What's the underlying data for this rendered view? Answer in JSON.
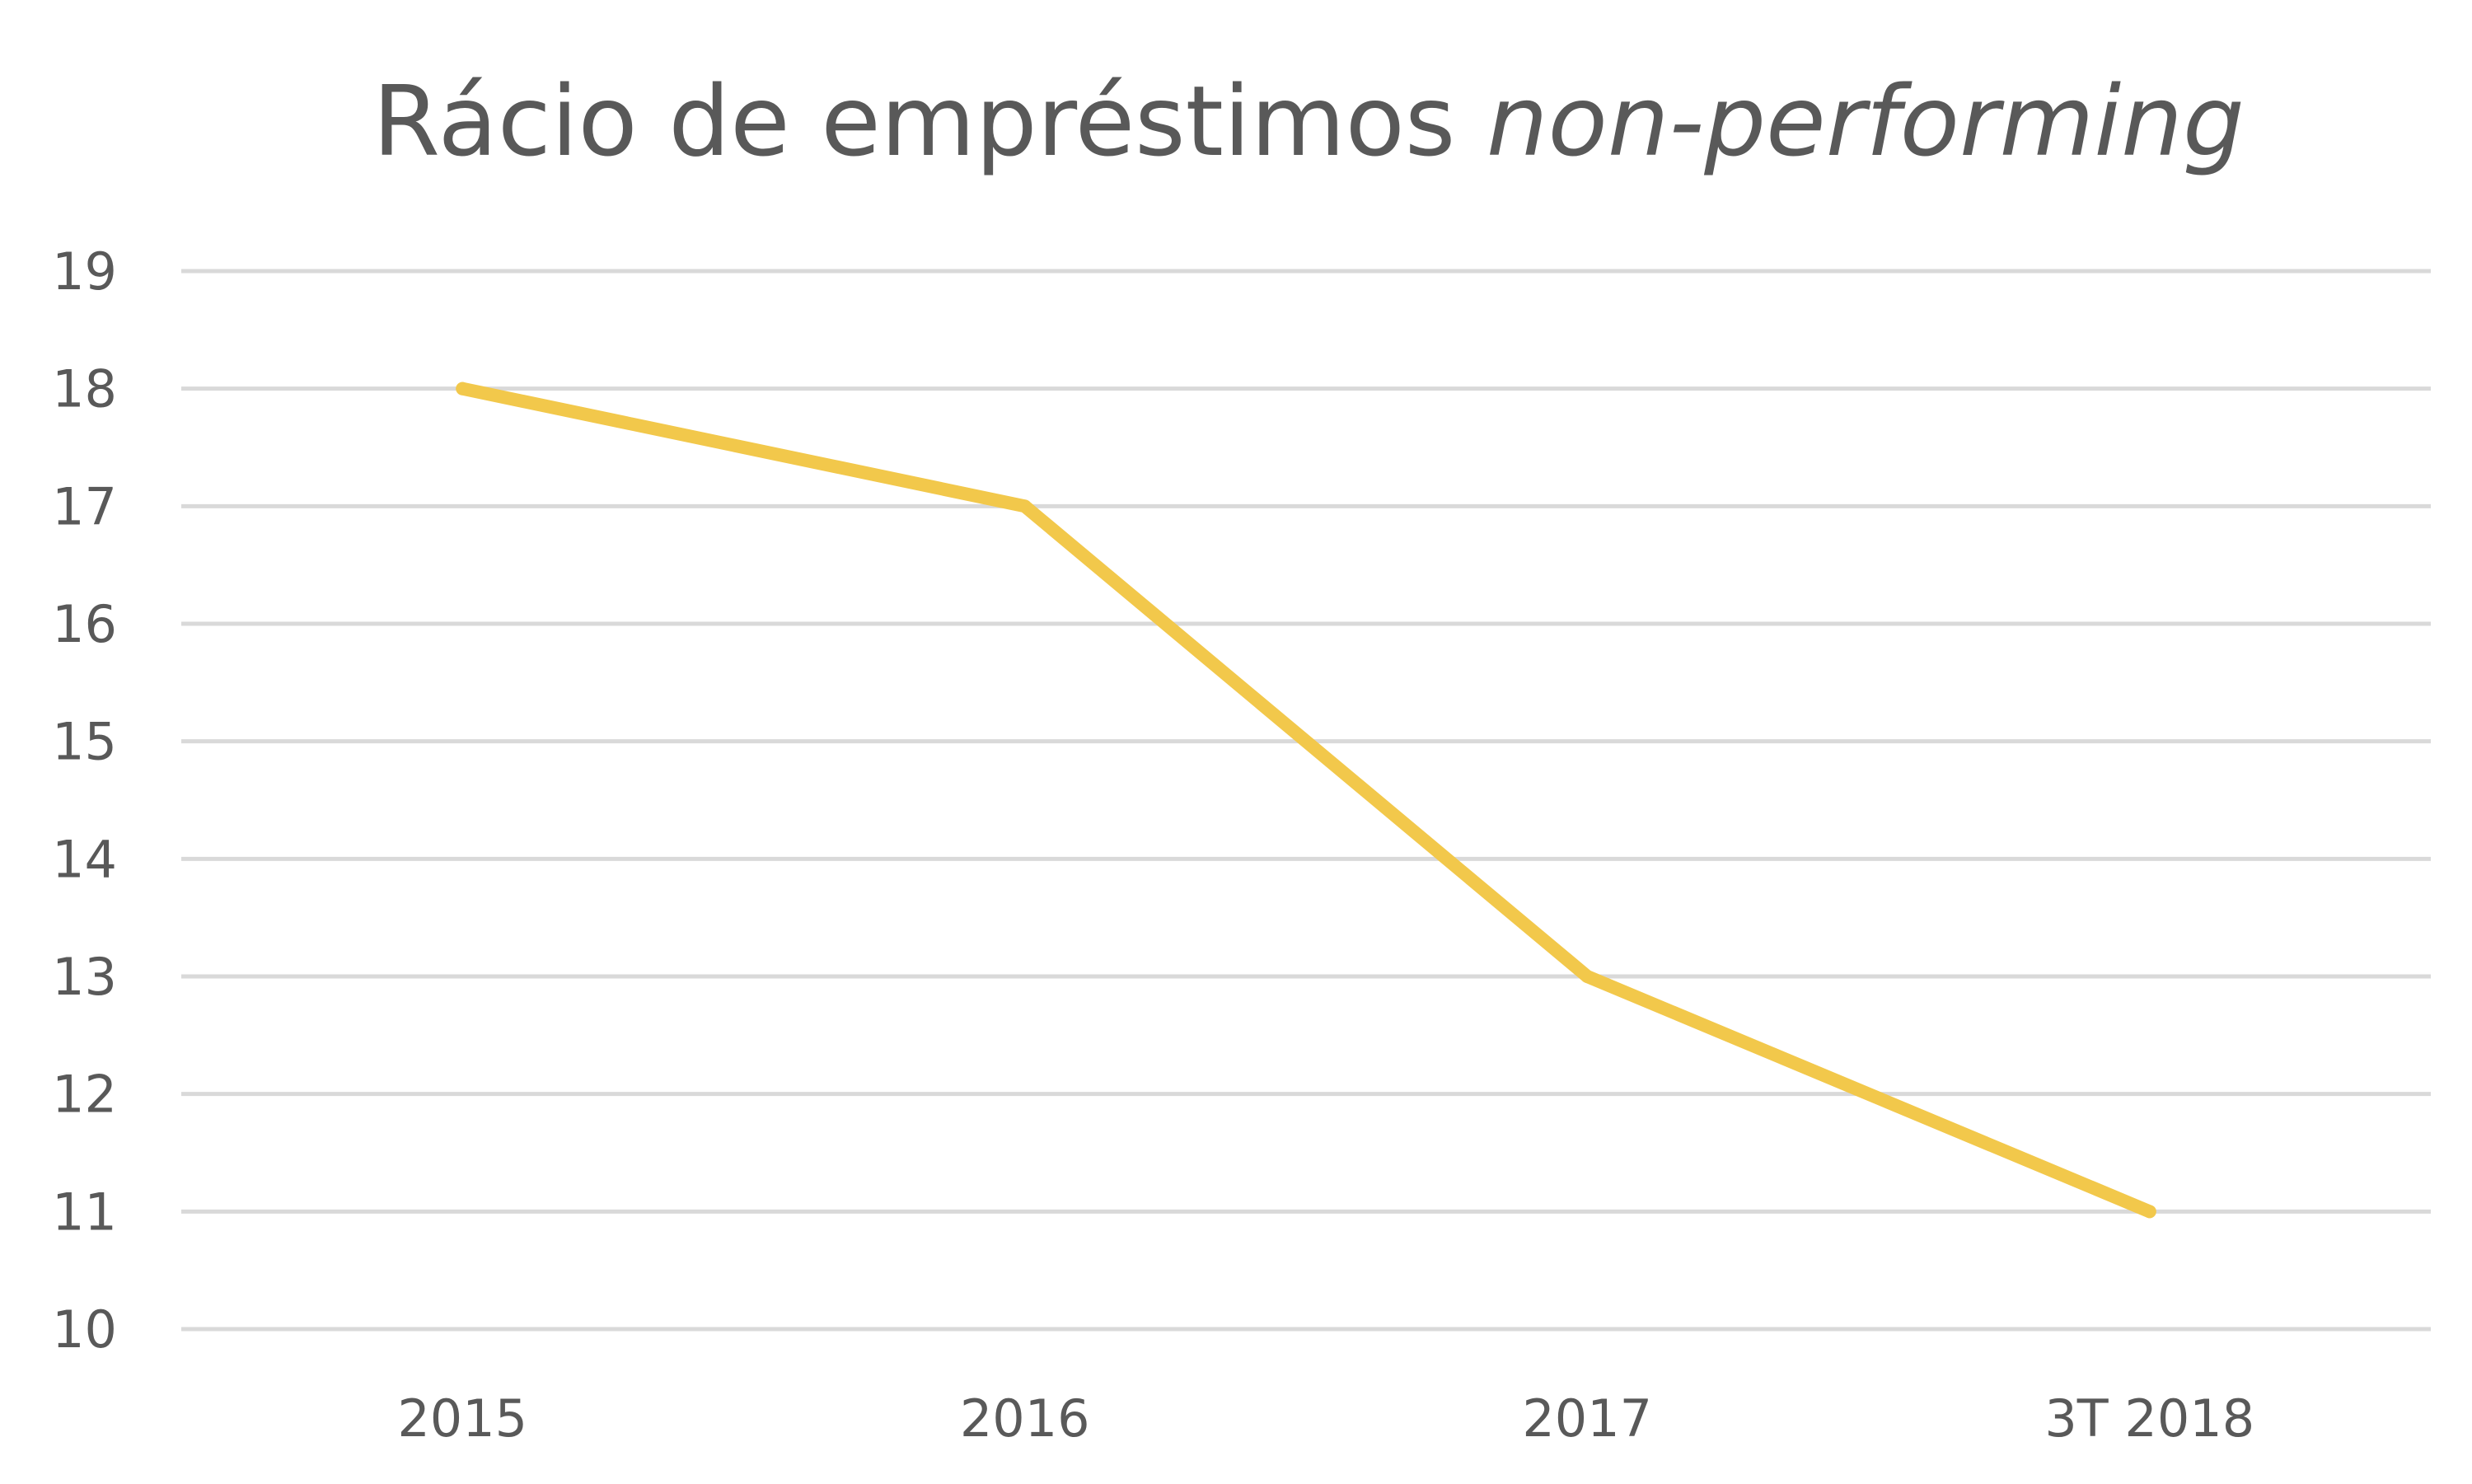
{
  "chart_data": {
    "type": "line",
    "title": "Rácio de empréstimos",
    "title_italic": "non-performing",
    "categories": [
      "2015",
      "2016",
      "2017",
      "3T 2018"
    ],
    "series": [
      {
        "values": [
          18,
          17,
          13,
          11
        ],
        "color": "#f2c84b"
      }
    ],
    "ylim": [
      10,
      19
    ],
    "yticks": [
      10,
      11,
      12,
      13,
      14,
      15,
      16,
      17,
      18,
      19
    ],
    "grid": true,
    "legend": "none"
  }
}
